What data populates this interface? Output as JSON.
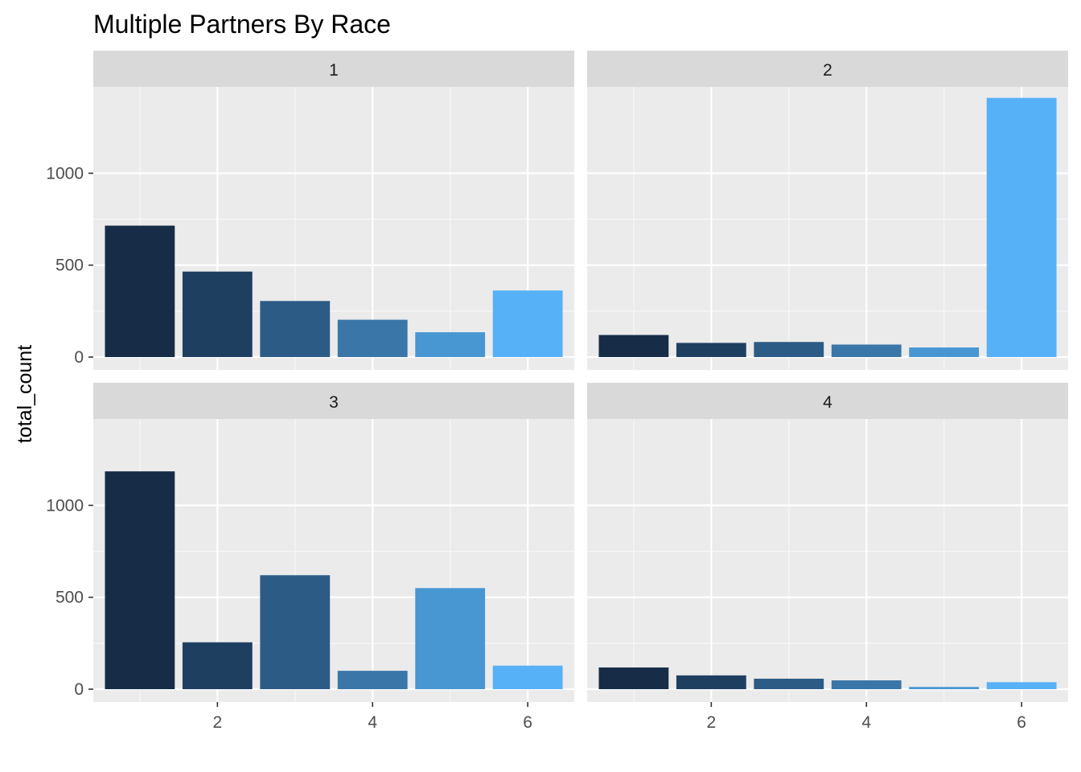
{
  "chart_data": {
    "type": "bar",
    "title": "Multiple Partners By Race",
    "xlabel": "",
    "ylabel": "total_count",
    "x": [
      1,
      2,
      3,
      4,
      5,
      6
    ],
    "x_ticks": [
      2,
      4,
      6
    ],
    "x_tick_labels": [
      "2",
      "4",
      "6"
    ],
    "xlim": [
      0.4,
      6.6
    ],
    "y_ticks": [
      0,
      500,
      1000
    ],
    "y_tick_labels": [
      "0",
      "500",
      "1000"
    ],
    "ylim": [
      -70,
      1470
    ],
    "grid": true,
    "legend": "none",
    "bar_colors": [
      "#172d47",
      "#1f3f61",
      "#2c5b85",
      "#3a76a8",
      "#4896d2",
      "#56b1f7"
    ],
    "panels": [
      {
        "label": "1",
        "values": [
          715,
          465,
          305,
          203,
          135,
          362
        ]
      },
      {
        "label": "2",
        "values": [
          120,
          77,
          82,
          68,
          52,
          1410
        ]
      },
      {
        "label": "3",
        "values": [
          1185,
          255,
          620,
          100,
          550,
          128
        ]
      },
      {
        "label": "4",
        "values": [
          118,
          75,
          57,
          48,
          12,
          38
        ]
      }
    ]
  }
}
